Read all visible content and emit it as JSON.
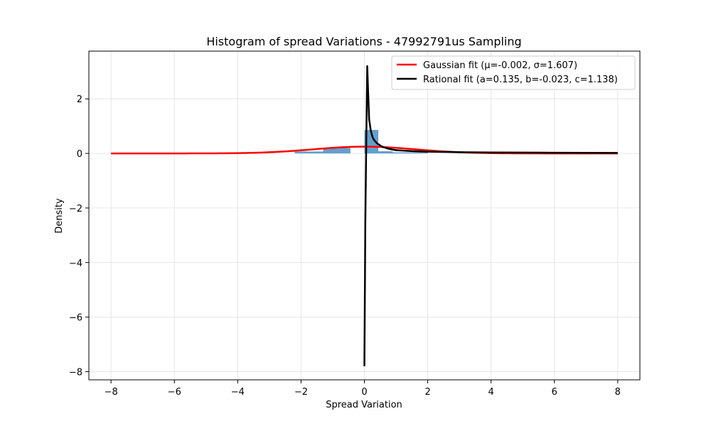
{
  "chart_data": {
    "type": "histogram",
    "title": "Histogram of spread Variations - 47992791us Sampling",
    "xlabel": "Spread Variation",
    "ylabel": "Density",
    "xlim": [
      -8.7,
      8.7
    ],
    "ylim": [
      -8.3,
      3.75
    ],
    "xticks": [
      -8,
      -6,
      -4,
      -2,
      0,
      2,
      4,
      6,
      8
    ],
    "yticks": [
      -8,
      -6,
      -4,
      -2,
      0,
      2
    ],
    "grid": true,
    "legend_position": "upper right",
    "histogram": {
      "color": "#5b9bc8",
      "bins": [
        {
          "x0": -2.2,
          "x1": -1.3,
          "value": 0.07
        },
        {
          "x0": -1.3,
          "x1": -0.44,
          "value": 0.2
        },
        {
          "x0": 0.0,
          "x1": 0.44,
          "value": 0.86
        },
        {
          "x0": 0.44,
          "x1": 0.9,
          "value": 0.08
        },
        {
          "x0": 0.9,
          "x1": 2.0,
          "value": 0.04
        }
      ]
    },
    "series": [
      {
        "name": "Gaussian fit (μ=-0.002, σ=1.607)",
        "color": "#ff0000",
        "kind": "gaussian",
        "params": {
          "mu": -0.002,
          "sigma": 1.607
        },
        "x_range": [
          -8,
          8
        ]
      },
      {
        "name": "Rational fit (a=0.135, b=-0.023, c=1.138)",
        "color": "#000000",
        "kind": "rational",
        "x": [
          0.0,
          0.03,
          0.06,
          0.09,
          0.12,
          0.15,
          0.2,
          0.25,
          0.3,
          0.4,
          0.5,
          0.6,
          0.8,
          1.0,
          1.5,
          2.0,
          3.0,
          4.0,
          5.0,
          6.0,
          7.0,
          8.0
        ],
        "y": [
          -7.8,
          -2.5,
          0.5,
          3.2,
          2.2,
          1.25,
          0.85,
          0.62,
          0.5,
          0.37,
          0.29,
          0.23,
          0.16,
          0.12,
          0.085,
          0.065,
          0.045,
          0.035,
          0.03,
          0.026,
          0.023,
          0.02
        ]
      }
    ]
  }
}
